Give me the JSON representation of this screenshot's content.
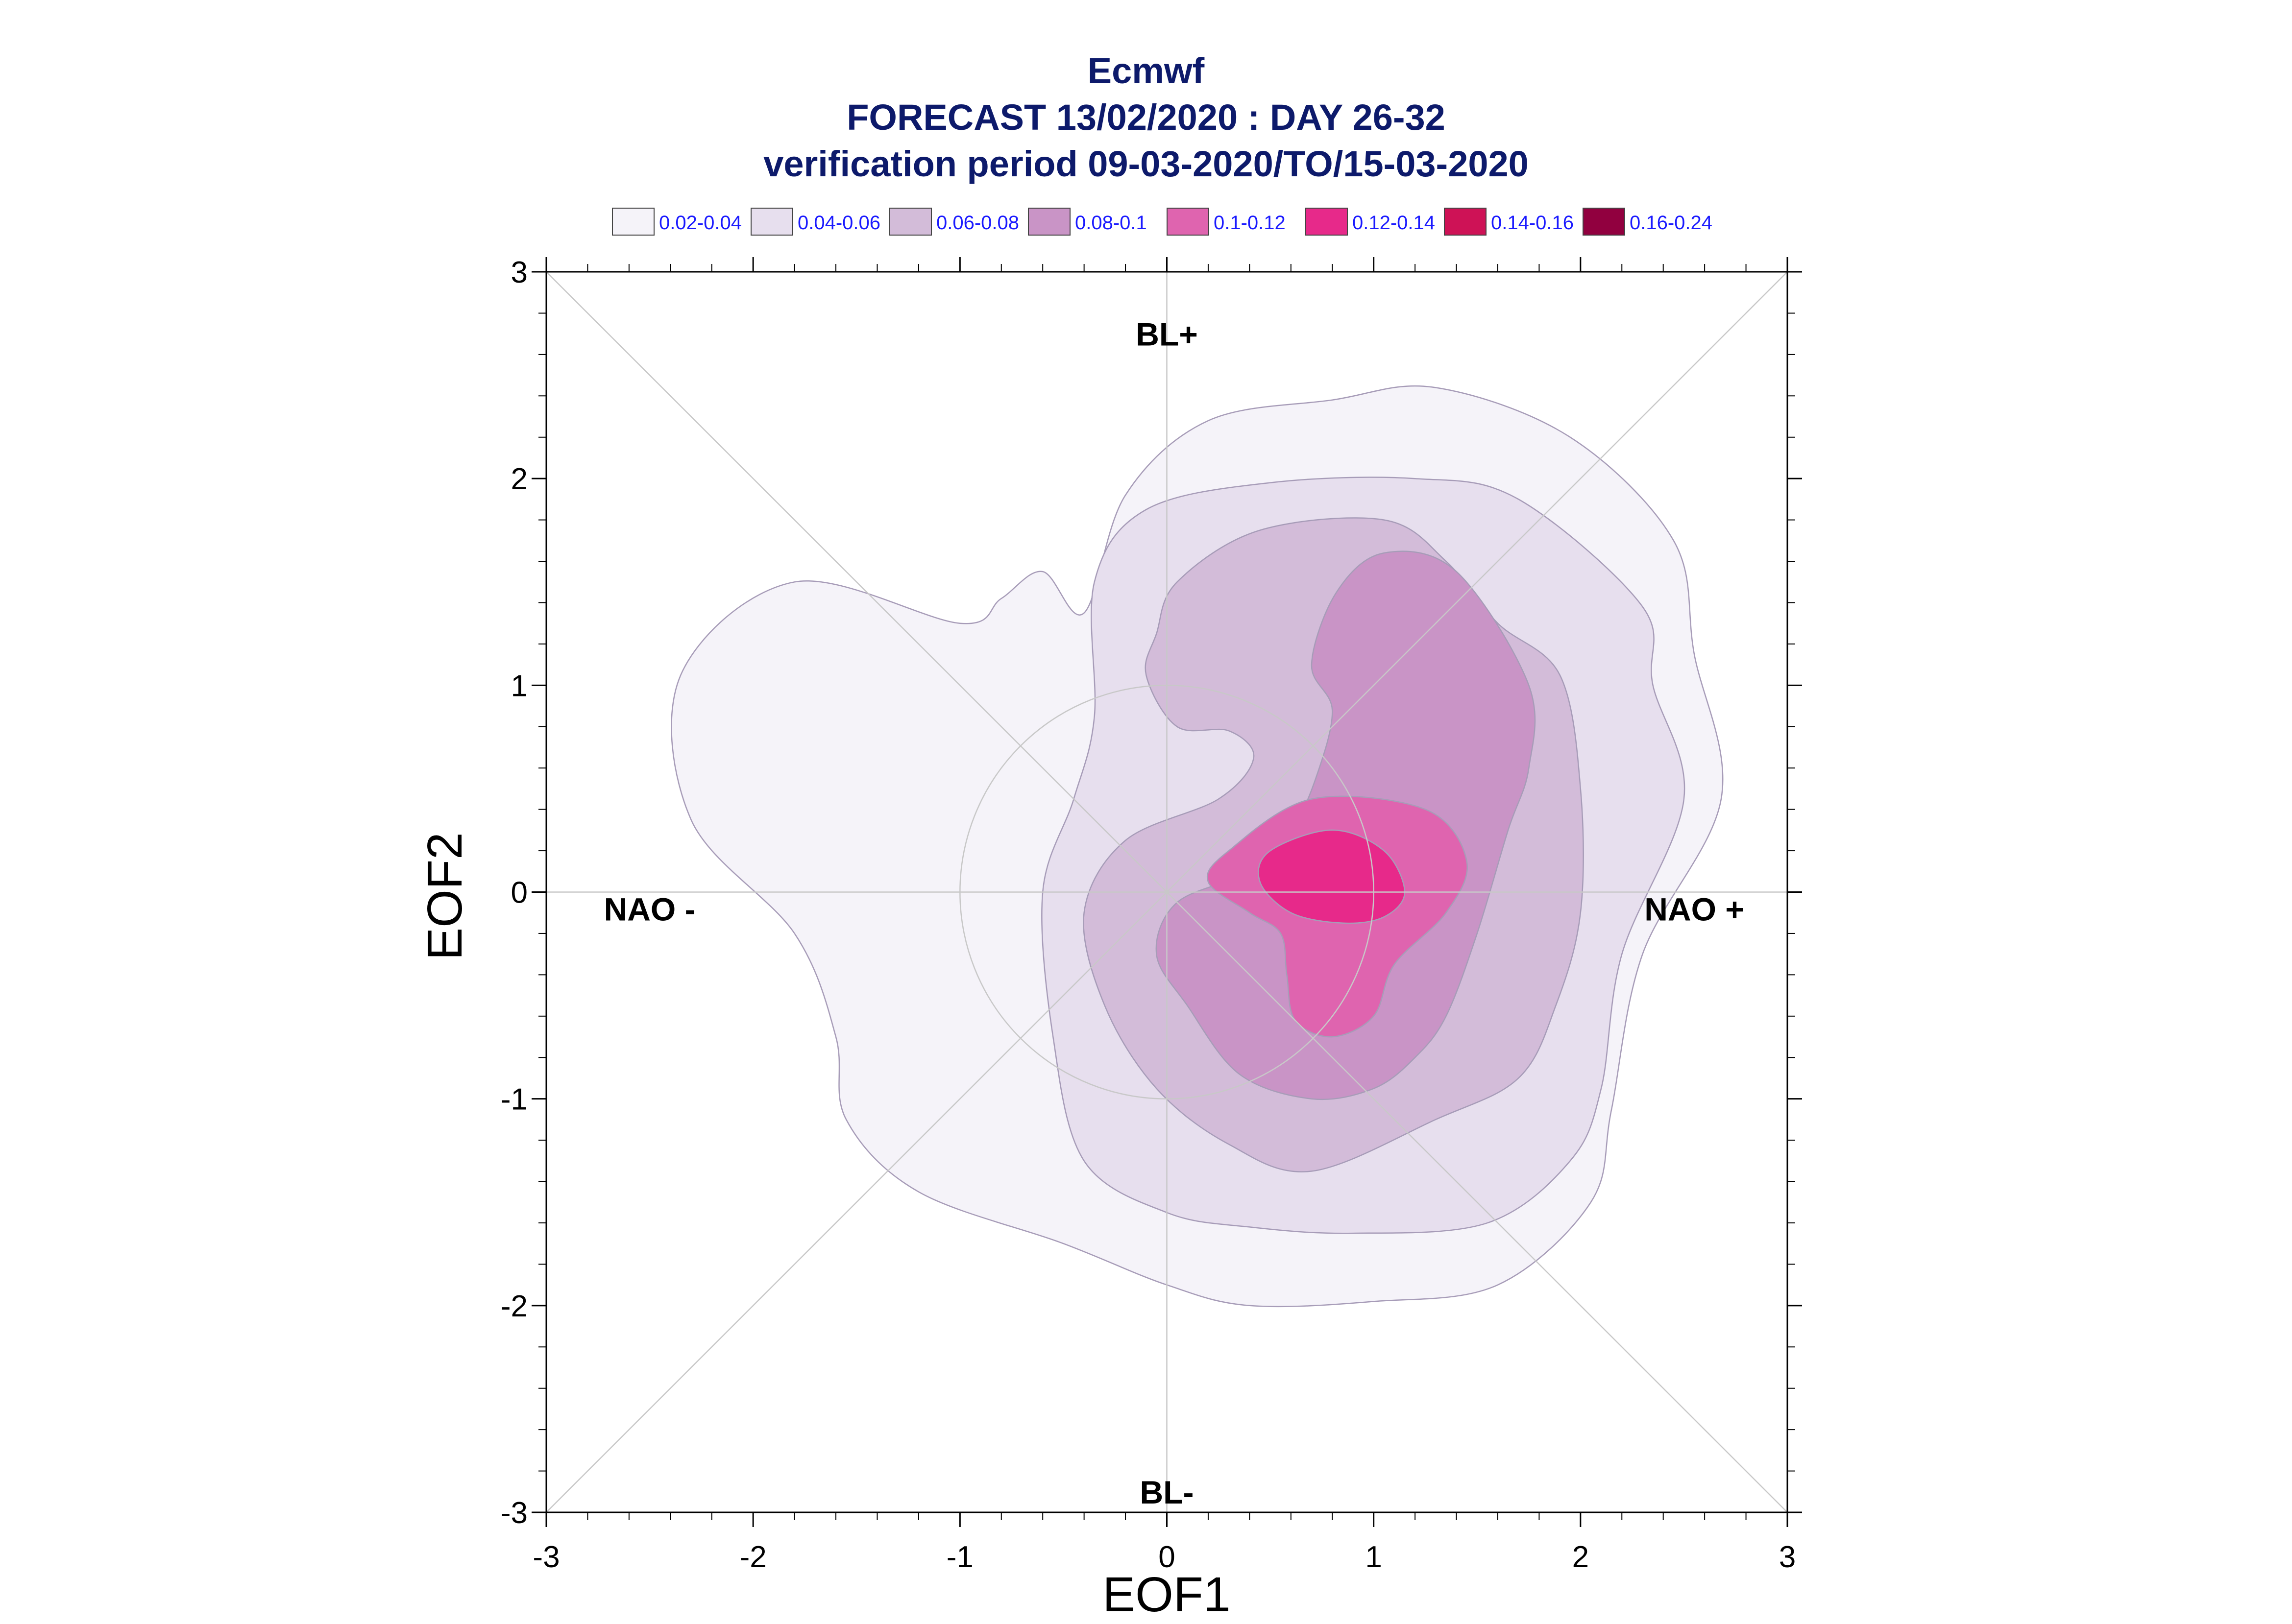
{
  "chart_data": {
    "type": "contour",
    "title_lines": [
      "Ecmwf",
      "FORECAST 13/02/2020 : DAY 26-32",
      "verification period 09-03-2020/TO/15-03-2020"
    ],
    "xlabel": "EOF1",
    "ylabel": "EOF2",
    "xlim": [
      -3,
      3
    ],
    "ylim": [
      -3,
      3
    ],
    "xticks": [
      -3,
      -2,
      -1,
      0,
      1,
      2,
      3
    ],
    "yticks": [
      -3,
      -2,
      -1,
      0,
      1,
      2,
      3
    ],
    "xtick_labels": [
      "-3",
      "-2",
      "-1",
      "0",
      "1",
      "2",
      "3"
    ],
    "ytick_labels": [
      "-3",
      "-2",
      "-1",
      "0",
      "1",
      "2",
      "3"
    ],
    "grid": false,
    "reference_lines": {
      "axes_through_origin": true,
      "diagonals": true,
      "unit_circle_radius": 1
    },
    "regime_labels": [
      {
        "text": "BL+",
        "x": 0,
        "y": 2.7
      },
      {
        "text": "BL-",
        "x": 0,
        "y": -2.9
      },
      {
        "text": "NAO -",
        "x": -2.5,
        "y": -0.08
      },
      {
        "text": "NAO +",
        "x": 2.55,
        "y": -0.08
      }
    ],
    "legend": {
      "position": "top",
      "entries": [
        {
          "label": "0.02-0.04",
          "color": "#f5f3f9"
        },
        {
          "label": "0.04-0.06",
          "color": "#e7dfee"
        },
        {
          "label": "0.06-0.08",
          "color": "#d3bcd9"
        },
        {
          "label": "0.08-0.1",
          "color": "#c994c6"
        },
        {
          "label": "0.1-0.12",
          "color": "#df64af"
        },
        {
          "label": "0.12-0.14",
          "color": "#e7298a"
        },
        {
          "label": "0.14-0.16",
          "color": "#ce1256"
        },
        {
          "label": "0.16-0.24",
          "color": "#91003f"
        }
      ]
    },
    "contours": [
      {
        "range": "0.02-0.04",
        "points": [
          [
            -0.4,
            1.35
          ],
          [
            -0.2,
            1.92
          ],
          [
            0.2,
            2.28
          ],
          [
            0.8,
            2.38
          ],
          [
            1.3,
            2.44
          ],
          [
            1.95,
            2.2
          ],
          [
            2.45,
            1.7
          ],
          [
            2.55,
            1.15
          ],
          [
            2.68,
            0.45
          ],
          [
            2.3,
            -0.3
          ],
          [
            2.15,
            -1.05
          ],
          [
            2.05,
            -1.5
          ],
          [
            1.6,
            -1.9
          ],
          [
            1.0,
            -1.98
          ],
          [
            0.4,
            -2.0
          ],
          [
            0,
            -1.9
          ],
          [
            -0.5,
            -1.7
          ],
          [
            -1.2,
            -1.45
          ],
          [
            -1.55,
            -1.1
          ],
          [
            -1.6,
            -0.7
          ],
          [
            -1.8,
            -0.2
          ],
          [
            -2.3,
            0.35
          ],
          [
            -2.35,
            1.05
          ],
          [
            -1.8,
            1.5
          ],
          [
            -1.0,
            1.3
          ],
          [
            -0.8,
            1.42
          ],
          [
            -0.6,
            1.55
          ]
        ]
      },
      {
        "range": "0.04-0.06",
        "points": [
          [
            -0.35,
            1.5
          ],
          [
            -0.1,
            1.85
          ],
          [
            0.5,
            1.98
          ],
          [
            1.2,
            2.0
          ],
          [
            1.7,
            1.9
          ],
          [
            2.3,
            1.38
          ],
          [
            2.35,
            1.0
          ],
          [
            2.5,
            0.45
          ],
          [
            2.2,
            -0.3
          ],
          [
            2.1,
            -0.95
          ],
          [
            1.95,
            -1.3
          ],
          [
            1.55,
            -1.6
          ],
          [
            0.9,
            -1.65
          ],
          [
            0.4,
            -1.62
          ],
          [
            0,
            -1.55
          ],
          [
            -0.4,
            -1.3
          ],
          [
            -0.55,
            -0.7
          ],
          [
            -0.6,
            0.0
          ],
          [
            -0.45,
            0.45
          ],
          [
            -0.35,
            0.85
          ]
        ]
      },
      {
        "range": "0.06-0.08",
        "points": [
          [
            0.05,
            1.5
          ],
          [
            0.45,
            1.75
          ],
          [
            1.05,
            1.8
          ],
          [
            1.35,
            1.6
          ],
          [
            1.6,
            1.3
          ],
          [
            1.9,
            1.05
          ],
          [
            2.0,
            0.5
          ],
          [
            2.0,
            -0.1
          ],
          [
            1.88,
            -0.55
          ],
          [
            1.7,
            -0.9
          ],
          [
            1.3,
            -1.1
          ],
          [
            0.7,
            -1.35
          ],
          [
            0.3,
            -1.22
          ],
          [
            -0.05,
            -0.95
          ],
          [
            -0.3,
            -0.55
          ],
          [
            -0.4,
            -0.1
          ],
          [
            -0.2,
            0.25
          ],
          [
            0.25,
            0.45
          ],
          [
            0.42,
            0.65
          ],
          [
            0.3,
            0.78
          ],
          [
            0.05,
            0.8
          ],
          [
            -0.1,
            1.05
          ],
          [
            -0.05,
            1.25
          ]
        ]
      },
      {
        "range": "0.08-0.1",
        "points": [
          [
            0.82,
            1.45
          ],
          [
            1.05,
            1.64
          ],
          [
            1.4,
            1.55
          ],
          [
            1.75,
            1.0
          ],
          [
            1.75,
            0.6
          ],
          [
            1.65,
            0.3
          ],
          [
            1.5,
            -0.2
          ],
          [
            1.35,
            -0.6
          ],
          [
            1.2,
            -0.8
          ],
          [
            1.0,
            -0.95
          ],
          [
            0.7,
            -1.0
          ],
          [
            0.35,
            -0.88
          ],
          [
            0.1,
            -0.55
          ],
          [
            -0.05,
            -0.3
          ],
          [
            0.05,
            -0.05
          ],
          [
            0.4,
            0.1
          ],
          [
            0.6,
            0.3
          ],
          [
            0.72,
            0.55
          ],
          [
            0.8,
            0.88
          ],
          [
            0.7,
            1.1
          ]
        ]
      },
      {
        "range": "0.1-0.12",
        "points": [
          [
            0.3,
            0.2
          ],
          [
            0.7,
            0.45
          ],
          [
            1.25,
            0.4
          ],
          [
            1.45,
            0.15
          ],
          [
            1.35,
            -0.1
          ],
          [
            1.1,
            -0.35
          ],
          [
            1.0,
            -0.6
          ],
          [
            0.8,
            -0.7
          ],
          [
            0.62,
            -0.62
          ],
          [
            0.58,
            -0.4
          ],
          [
            0.55,
            -0.2
          ],
          [
            0.4,
            -0.1
          ],
          [
            0.2,
            0.05
          ]
        ]
      },
      {
        "range": "0.12-0.14",
        "points": [
          [
            0.5,
            0.2
          ],
          [
            0.8,
            0.3
          ],
          [
            1.05,
            0.2
          ],
          [
            1.15,
            0.0
          ],
          [
            1.05,
            -0.12
          ],
          [
            0.85,
            -0.15
          ],
          [
            0.6,
            -0.1
          ],
          [
            0.45,
            0.05
          ]
        ]
      }
    ]
  }
}
